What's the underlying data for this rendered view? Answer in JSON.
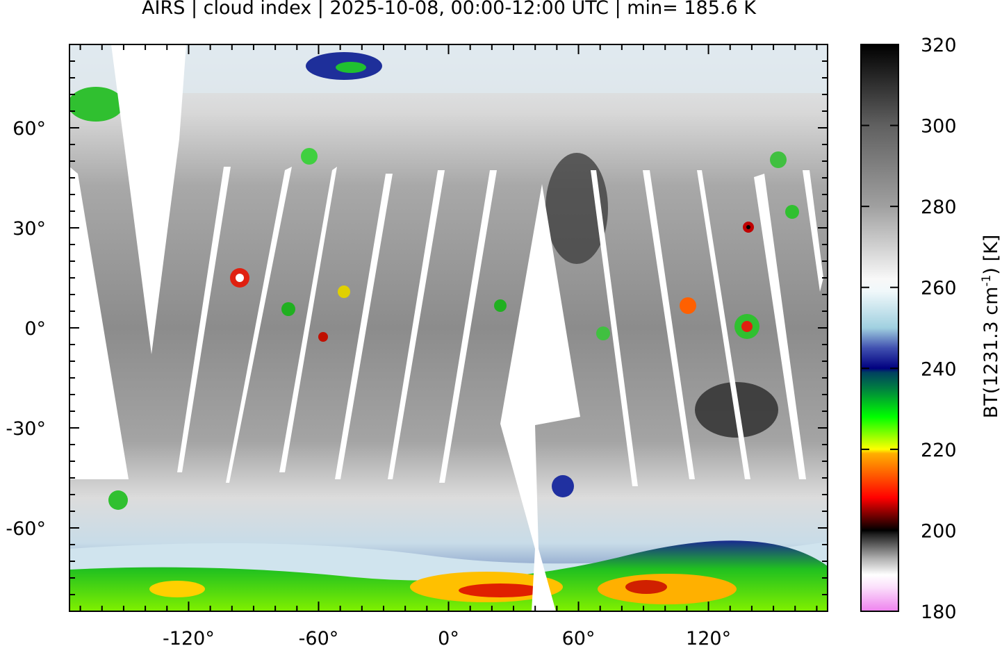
{
  "title": "AIRS | cloud index | 2025-10-08, 00:00-12:00 UTC | min= 185.6 K",
  "map": {
    "projection": "equirectangular",
    "lon_range": [
      -175,
      175
    ],
    "lat_range": [
      -85,
      85
    ],
    "x_ticks": [
      -120,
      -60,
      0,
      60,
      120
    ],
    "x_tick_labels": [
      "-120°",
      "-60°",
      "0°",
      "60°",
      "120°"
    ],
    "y_ticks": [
      60,
      30,
      0,
      -30,
      -60
    ],
    "y_tick_labels": [
      "60°",
      "30°",
      "0°",
      "-30°",
      "-60°"
    ],
    "coastlines": true
  },
  "colorbar": {
    "label_main": "BT(1231.3 cm",
    "label_sup": "-1",
    "label_end": ") [K]",
    "range": [
      180,
      320
    ],
    "ticks": [
      320,
      300,
      280,
      260,
      240,
      220,
      200,
      180
    ],
    "tick_labels": [
      "320",
      "300",
      "280",
      "260",
      "240",
      "220",
      "200",
      "180"
    ],
    "stops": [
      {
        "value": 180,
        "color": "#ee82ee"
      },
      {
        "value": 186,
        "color": "#fbe0fb"
      },
      {
        "value": 189,
        "color": "#ffffff"
      },
      {
        "value": 193,
        "color": "#b0b0b0"
      },
      {
        "value": 199,
        "color": "#202020"
      },
      {
        "value": 200,
        "color": "#000000"
      },
      {
        "value": 203,
        "color": "#600000"
      },
      {
        "value": 208,
        "color": "#ff0000"
      },
      {
        "value": 214,
        "color": "#ff6000"
      },
      {
        "value": 219,
        "color": "#ffb000"
      },
      {
        "value": 220,
        "color": "#ffff00"
      },
      {
        "value": 228,
        "color": "#00ff00"
      },
      {
        "value": 235,
        "color": "#008040"
      },
      {
        "value": 239,
        "color": "#004060"
      },
      {
        "value": 240,
        "color": "#000080"
      },
      {
        "value": 245,
        "color": "#4050b0"
      },
      {
        "value": 250,
        "color": "#a0d0e0"
      },
      {
        "value": 259,
        "color": "#f0f8fa"
      },
      {
        "value": 262,
        "color": "#f8f8f8"
      },
      {
        "value": 280,
        "color": "#a0a0a0"
      },
      {
        "value": 300,
        "color": "#606060"
      },
      {
        "value": 320,
        "color": "#000000"
      }
    ]
  }
}
